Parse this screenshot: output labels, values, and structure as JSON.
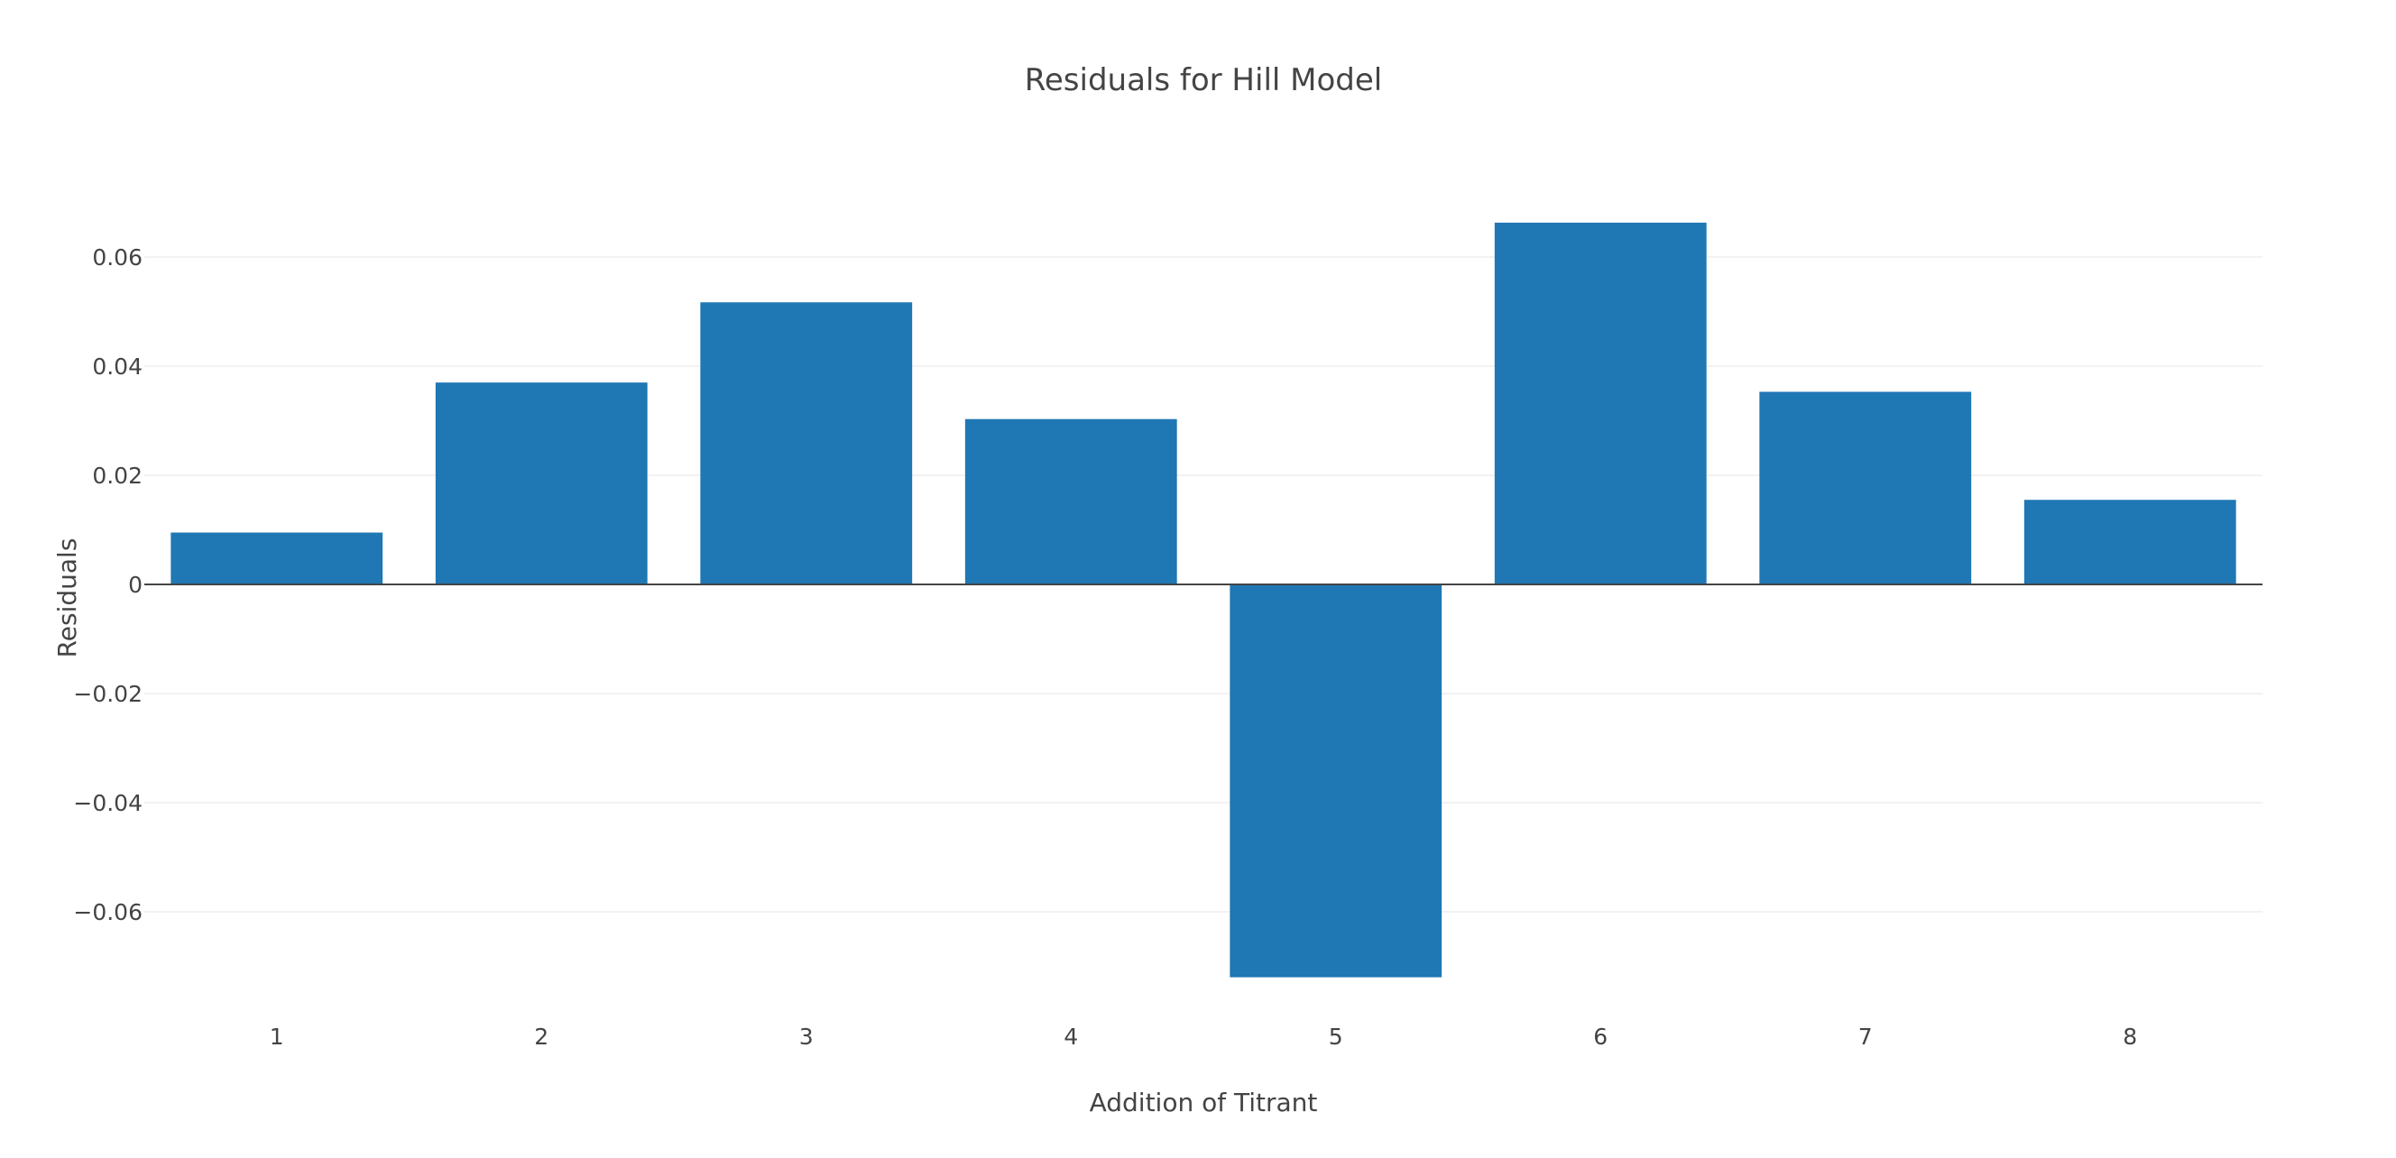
{
  "chart_data": {
    "type": "bar",
    "title": "Residuals for Hill Model",
    "xlabel": "Addition of Titrant",
    "ylabel": "Residuals",
    "categories": [
      "1",
      "2",
      "3",
      "4",
      "5",
      "6",
      "7",
      "8"
    ],
    "values": [
      0.0095,
      0.037,
      0.0517,
      0.0303,
      -0.072,
      0.0663,
      0.0353,
      0.0155
    ],
    "ylim": [
      -0.08,
      0.08
    ],
    "yticks": [
      -0.06,
      -0.04,
      -0.02,
      0,
      0.02,
      0.04,
      0.06
    ],
    "ytick_labels": [
      "−0.06",
      "−0.04",
      "−0.02",
      "0",
      "0.02",
      "0.04",
      "0.06"
    ],
    "bar_color": "#1f77b4",
    "grid": true,
    "legend": "none"
  }
}
